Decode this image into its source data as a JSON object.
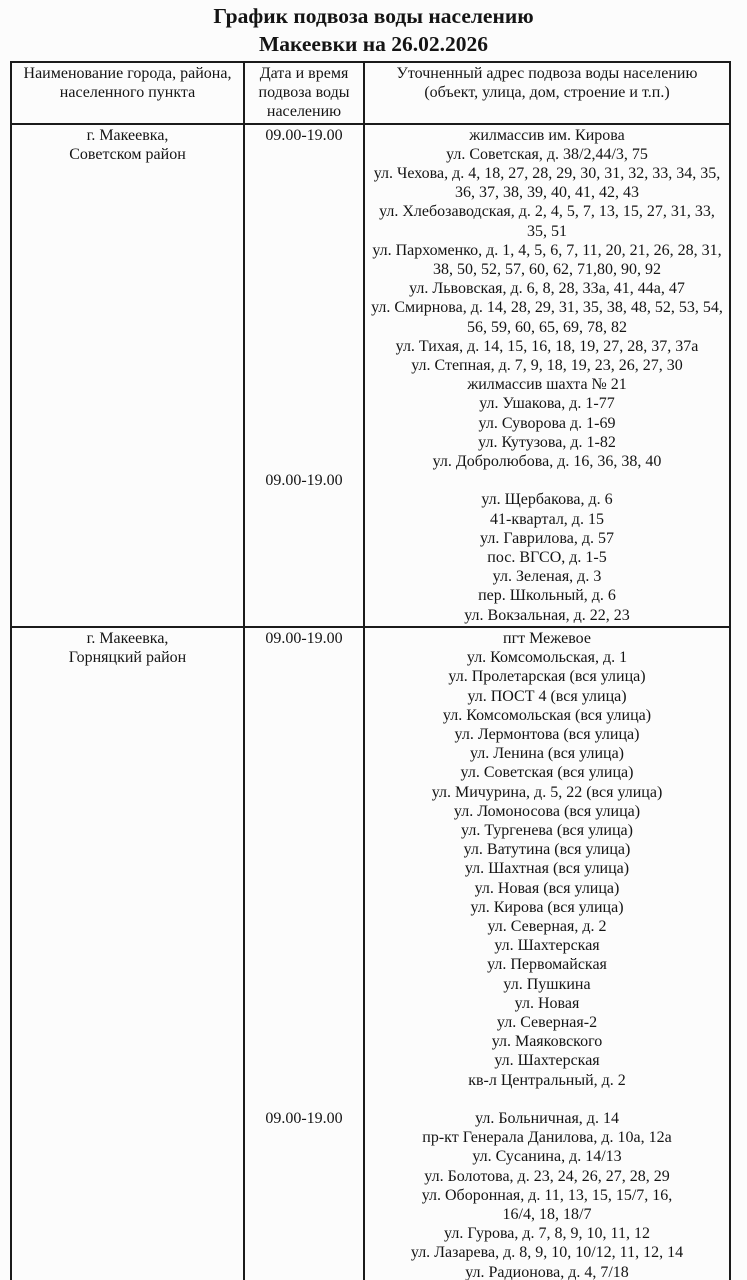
{
  "title": {
    "line1": "График подвоза воды населению",
    "line2": "Макеевки на 26.02.2026"
  },
  "table": {
    "headers": {
      "col1_lines": [
        "Наименование города, района,",
        "населенного пункта"
      ],
      "col2_lines": [
        "Дата и время",
        "подвоза воды",
        "населению"
      ],
      "col3_lines": [
        "Уточненный адрес подвоза воды населению",
        "(объект, улица, дом, строение и т.п.)"
      ]
    },
    "rows": [
      {
        "place_lines": [
          "г. Макеевка,",
          "Советском район"
        ],
        "time_lines": [
          "09.00-19.00",
          "",
          "",
          "",
          "",
          "",
          "",
          "",
          "",
          "",
          "",
          "",
          "",
          "",
          "",
          "",
          "",
          "",
          "09.00-19.00"
        ],
        "address_lines": [
          "жилмассив им. Кирова",
          "ул. Советская, д. 38/2,44/3, 75",
          "ул. Чехова, д. 4, 18, 27, 28, 29, 30, 31, 32, 33, 34, 35,",
          "36, 37, 38, 39, 40, 41, 42, 43",
          "ул. Хлебозаводская, д. 2, 4, 5, 7, 13, 15, 27, 31, 33,",
          "35, 51",
          "ул. Пархоменко, д. 1, 4, 5, 6, 7, 11, 20, 21, 26, 28, 31,",
          "38, 50, 52, 57, 60, 62, 71,80, 90, 92",
          "ул. Львовская, д. 6, 8, 28, 33а, 41, 44а, 47",
          "ул. Смирнова, д. 14, 28, 29, 31, 35, 38, 48, 52, 53, 54,",
          "56, 59, 60, 65, 69, 78, 82",
          "ул. Тихая, д. 14, 15, 16, 18, 19, 27, 28, 37, 37а",
          "ул. Степная, д. 7, 9, 18, 19, 23, 26, 27, 30",
          "жилмассив шахта № 21",
          "ул. Ушакова, д. 1-77",
          "ул. Суворова д. 1-69",
          "ул. Кутузова, д. 1-82",
          "ул. Добролюбова, д. 16, 36, 38, 40",
          "",
          "ул. Щербакова, д. 6",
          "41-квартал, д. 15",
          "ул. Гаврилова, д. 57",
          "пос. ВГСО, д. 1-5",
          "ул. Зеленая, д. 3",
          "пер. Школьный, д. 6",
          "ул. Вокзальная, д. 22, 23"
        ]
      },
      {
        "place_lines": [
          "г. Макеевка,",
          "Горняцкий район"
        ],
        "time_lines": [
          "09.00-19.00",
          "",
          "",
          "",
          "",
          "",
          "",
          "",
          "",
          "",
          "",
          "",
          "",
          "",
          "",
          "",
          "",
          "",
          "",
          "",
          "",
          "",
          "",
          "",
          "",
          "09.00-19.00"
        ],
        "address_lines": [
          "пгт Межевое",
          "ул. Комсомольская, д. 1",
          "ул. Пролетарская (вся улица)",
          "ул. ПОСТ 4 (вся улица)",
          "ул. Комсомольская (вся улица)",
          "ул. Лермонтова (вся улица)",
          "ул. Ленина (вся улица)",
          "ул. Советская (вся улица)",
          "ул. Мичурина, д. 5, 22 (вся улица)",
          "ул. Ломоносова (вся улица)",
          "ул. Тургенева (вся улица)",
          "ул. Ватутина (вся улица)",
          "ул. Шахтная (вся улица)",
          "ул. Новая (вся улица)",
          "ул. Кирова (вся улица)",
          "ул. Северная, д. 2",
          "ул. Шахтерская",
          "ул. Первомайская",
          "ул. Пушкина",
          "ул. Новая",
          "ул. Северная-2",
          "ул. Маяковского",
          "ул. Шахтерская",
          "кв-л Центральный, д. 2",
          "",
          "ул. Больничная, д. 14",
          "пр-кт Генерала Данилова, д. 10а, 12а",
          "ул. Сусанина, д. 14/13",
          "ул. Болотова, д. 23, 24, 26, 27, 28, 29",
          "ул. Оборонная, д. 11, 13, 15, 15/7, 16,",
          "16/4, 18, 18/7",
          "ул. Гурова, д. 7, 8, 9, 10, 11, 12",
          "ул. Лазарева, д. 8, 9, 10, 10/12, 11, 12, 14",
          "ул. Радионова, д. 4,  7/18"
        ]
      }
    ]
  },
  "colors": {
    "background": "#fcfcfc",
    "text": "#141414",
    "border": "#1b1b1b"
  }
}
